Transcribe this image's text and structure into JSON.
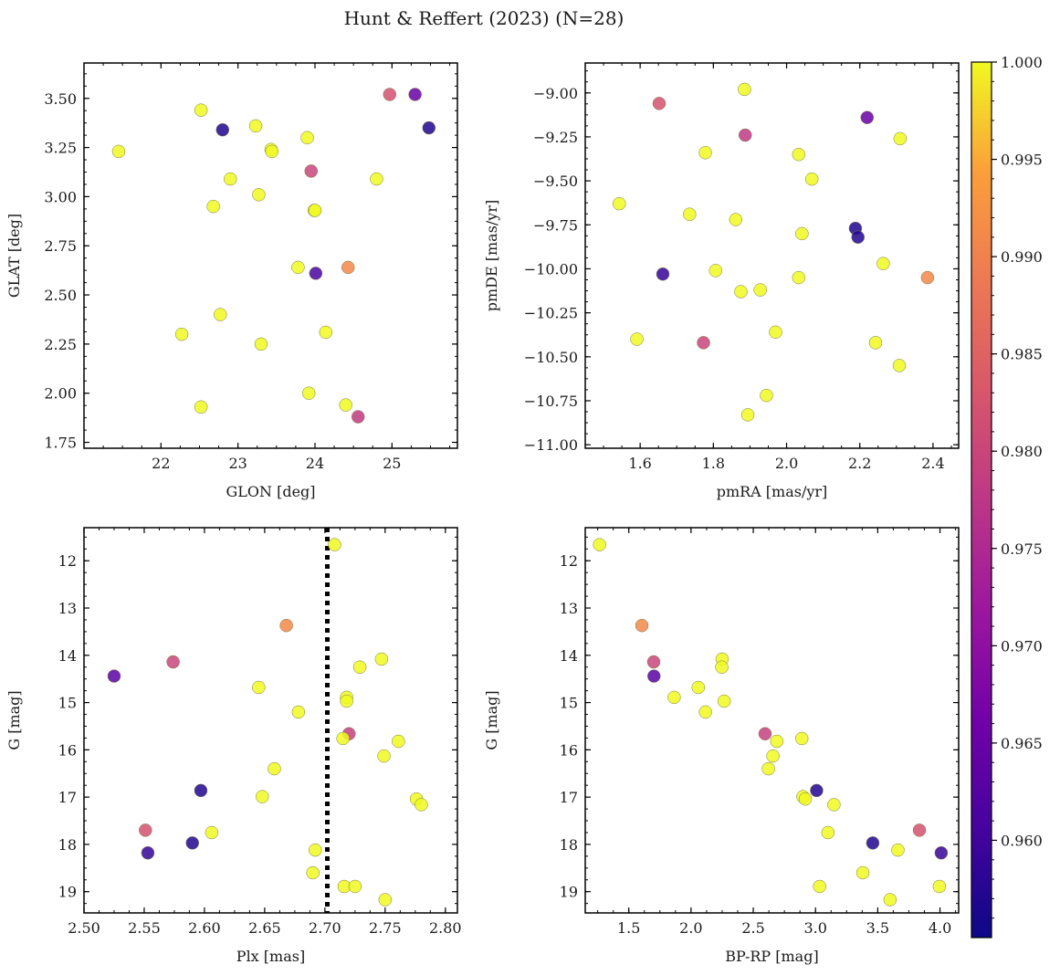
{
  "figure_title": "Hunt & Reffert (2023) (N=28)",
  "colorbar": {
    "min": 0.955,
    "max": 1.0,
    "ticks": [
      0.96,
      0.965,
      0.97,
      0.975,
      0.98,
      0.985,
      0.99,
      0.995,
      1.0
    ],
    "tick_labels": [
      "0.960",
      "0.965",
      "0.970",
      "0.975",
      "0.980",
      "0.985",
      "0.990",
      "0.995",
      "1.000"
    ],
    "colormap": "plasma"
  },
  "chart_data": [
    {
      "type": "scatter",
      "title": "",
      "xlabel": "GLON [deg]",
      "ylabel": "GLAT [deg]",
      "xlim": [
        21.0,
        25.85
      ],
      "ylim": [
        1.72,
        3.68
      ],
      "y_inverted": false,
      "xticks": [
        22,
        23,
        24,
        25
      ],
      "xtick_labels": [
        "22",
        "23",
        "24",
        "25"
      ],
      "yticks": [
        1.75,
        2.0,
        2.25,
        2.5,
        2.75,
        3.0,
        3.25,
        3.5
      ],
      "ytick_labels": [
        "1.75",
        "2.00",
        "2.25",
        "2.50",
        "2.75",
        "3.00",
        "3.25",
        "3.50"
      ],
      "points": [
        {
          "x": 21.45,
          "y": 3.23,
          "c": 1.0
        },
        {
          "x": 22.52,
          "y": 3.44,
          "c": 1.0
        },
        {
          "x": 22.8,
          "y": 3.34,
          "c": 0.957
        },
        {
          "x": 23.23,
          "y": 3.36,
          "c": 1.0
        },
        {
          "x": 23.43,
          "y": 3.24,
          "c": 1.0
        },
        {
          "x": 23.9,
          "y": 3.3,
          "c": 1.0
        },
        {
          "x": 24.97,
          "y": 3.52,
          "c": 0.982
        },
        {
          "x": 25.3,
          "y": 3.52,
          "c": 0.965
        },
        {
          "x": 25.48,
          "y": 3.35,
          "c": 0.957
        },
        {
          "x": 22.9,
          "y": 3.09,
          "c": 1.0
        },
        {
          "x": 23.27,
          "y": 3.01,
          "c": 1.0
        },
        {
          "x": 23.95,
          "y": 3.13,
          "c": 0.98
        },
        {
          "x": 24.8,
          "y": 3.09,
          "c": 1.0
        },
        {
          "x": 22.68,
          "y": 2.95,
          "c": 1.0
        },
        {
          "x": 23.99,
          "y": 2.93,
          "c": 1.0
        },
        {
          "x": 24.43,
          "y": 2.64,
          "c": 0.991
        },
        {
          "x": 23.78,
          "y": 2.64,
          "c": 1.0
        },
        {
          "x": 24.01,
          "y": 2.61,
          "c": 0.961
        },
        {
          "x": 22.77,
          "y": 2.4,
          "c": 1.0
        },
        {
          "x": 22.27,
          "y": 2.3,
          "c": 1.0
        },
        {
          "x": 24.14,
          "y": 2.31,
          "c": 1.0
        },
        {
          "x": 23.3,
          "y": 2.25,
          "c": 1.0
        },
        {
          "x": 23.92,
          "y": 2.0,
          "c": 1.0
        },
        {
          "x": 22.52,
          "y": 1.93,
          "c": 1.0
        },
        {
          "x": 24.4,
          "y": 1.94,
          "c": 1.0
        },
        {
          "x": 24.56,
          "y": 1.88,
          "c": 0.978
        },
        {
          "x": 23.44,
          "y": 3.23,
          "c": 1.0
        },
        {
          "x": 24.0,
          "y": 2.93,
          "c": 1.0
        }
      ]
    },
    {
      "type": "scatter",
      "title": "",
      "xlabel": "pmRA [mas/yr]",
      "ylabel": "pmDE [mas/yr]",
      "xlim": [
        1.45,
        2.47
      ],
      "ylim": [
        -11.02,
        -8.83
      ],
      "y_inverted": false,
      "xticks": [
        1.6,
        1.8,
        2.0,
        2.2,
        2.4
      ],
      "xtick_labels": [
        "1.6",
        "1.8",
        "2.0",
        "2.2",
        "2.4"
      ],
      "yticks": [
        -11.0,
        -10.75,
        -10.5,
        -10.25,
        -10.0,
        -9.75,
        -9.5,
        -9.25,
        -9.0
      ],
      "ytick_labels": [
        "−11.00",
        "−10.75",
        "−10.50",
        "−10.25",
        "−10.00",
        "−9.75",
        "−9.50",
        "−9.25",
        "−9.00"
      ],
      "points": [
        {
          "x": 1.885,
          "y": -8.98,
          "c": 1.0
        },
        {
          "x": 1.652,
          "y": -9.06,
          "c": 0.982
        },
        {
          "x": 2.22,
          "y": -9.14,
          "c": 0.965
        },
        {
          "x": 1.887,
          "y": -9.24,
          "c": 0.978
        },
        {
          "x": 2.31,
          "y": -9.26,
          "c": 1.0
        },
        {
          "x": 1.778,
          "y": -9.34,
          "c": 1.0
        },
        {
          "x": 2.033,
          "y": -9.35,
          "c": 1.0
        },
        {
          "x": 2.069,
          "y": -9.49,
          "c": 1.0
        },
        {
          "x": 1.543,
          "y": -9.63,
          "c": 1.0
        },
        {
          "x": 1.735,
          "y": -9.69,
          "c": 1.0
        },
        {
          "x": 1.861,
          "y": -9.72,
          "c": 1.0
        },
        {
          "x": 2.188,
          "y": -9.77,
          "c": 0.957
        },
        {
          "x": 2.195,
          "y": -9.82,
          "c": 0.957
        },
        {
          "x": 2.042,
          "y": -9.8,
          "c": 1.0
        },
        {
          "x": 1.662,
          "y": -10.03,
          "c": 0.959
        },
        {
          "x": 1.806,
          "y": -10.01,
          "c": 1.0
        },
        {
          "x": 2.264,
          "y": -9.97,
          "c": 1.0
        },
        {
          "x": 2.033,
          "y": -10.05,
          "c": 1.0
        },
        {
          "x": 2.385,
          "y": -10.05,
          "c": 0.991
        },
        {
          "x": 1.875,
          "y": -10.13,
          "c": 1.0
        },
        {
          "x": 1.928,
          "y": -10.12,
          "c": 1.0
        },
        {
          "x": 1.97,
          "y": -10.36,
          "c": 1.0
        },
        {
          "x": 1.591,
          "y": -10.4,
          "c": 1.0
        },
        {
          "x": 1.773,
          "y": -10.42,
          "c": 0.98
        },
        {
          "x": 2.243,
          "y": -10.42,
          "c": 1.0
        },
        {
          "x": 2.308,
          "y": -10.55,
          "c": 1.0
        },
        {
          "x": 1.945,
          "y": -10.72,
          "c": 1.0
        },
        {
          "x": 1.894,
          "y": -10.83,
          "c": 1.0
        }
      ]
    },
    {
      "type": "scatter",
      "title": "",
      "xlabel": "Plx [mas]",
      "ylabel": "G [mag]",
      "xlim": [
        2.5,
        2.81
      ],
      "ylim": [
        11.3,
        19.45
      ],
      "y_inverted": true,
      "xticks": [
        2.5,
        2.55,
        2.6,
        2.65,
        2.7,
        2.75,
        2.8
      ],
      "xtick_labels": [
        "2.50",
        "2.55",
        "2.60",
        "2.65",
        "2.70",
        "2.75",
        "2.80"
      ],
      "yticks": [
        12,
        13,
        14,
        15,
        16,
        17,
        18,
        19
      ],
      "ytick_labels": [
        "12",
        "13",
        "14",
        "15",
        "16",
        "17",
        "18",
        "19"
      ],
      "vline": {
        "x": 2.702,
        "style": "dotted"
      },
      "points": [
        {
          "x": 2.708,
          "y": 11.66,
          "c": 1.0
        },
        {
          "x": 2.668,
          "y": 13.37,
          "c": 0.991
        },
        {
          "x": 2.574,
          "y": 14.14,
          "c": 0.98
        },
        {
          "x": 2.525,
          "y": 14.44,
          "c": 0.963
        },
        {
          "x": 2.747,
          "y": 14.08,
          "c": 1.0
        },
        {
          "x": 2.729,
          "y": 14.25,
          "c": 1.0
        },
        {
          "x": 2.645,
          "y": 14.68,
          "c": 1.0
        },
        {
          "x": 2.718,
          "y": 14.89,
          "c": 1.0
        },
        {
          "x": 2.718,
          "y": 14.97,
          "c": 1.0
        },
        {
          "x": 2.678,
          "y": 15.2,
          "c": 1.0
        },
        {
          "x": 2.72,
          "y": 15.66,
          "c": 0.979
        },
        {
          "x": 2.715,
          "y": 15.76,
          "c": 1.0
        },
        {
          "x": 2.761,
          "y": 15.82,
          "c": 1.0
        },
        {
          "x": 2.749,
          "y": 16.13,
          "c": 1.0
        },
        {
          "x": 2.658,
          "y": 16.4,
          "c": 1.0
        },
        {
          "x": 2.597,
          "y": 16.86,
          "c": 0.957
        },
        {
          "x": 2.648,
          "y": 16.99,
          "c": 1.0
        },
        {
          "x": 2.776,
          "y": 17.04,
          "c": 1.0
        },
        {
          "x": 2.78,
          "y": 17.16,
          "c": 1.0
        },
        {
          "x": 2.551,
          "y": 17.7,
          "c": 0.982
        },
        {
          "x": 2.606,
          "y": 17.75,
          "c": 1.0
        },
        {
          "x": 2.59,
          "y": 17.97,
          "c": 0.957
        },
        {
          "x": 2.553,
          "y": 18.18,
          "c": 0.959
        },
        {
          "x": 2.692,
          "y": 18.12,
          "c": 1.0
        },
        {
          "x": 2.69,
          "y": 18.6,
          "c": 1.0
        },
        {
          "x": 2.716,
          "y": 18.89,
          "c": 1.0
        },
        {
          "x": 2.725,
          "y": 18.89,
          "c": 1.0
        },
        {
          "x": 2.75,
          "y": 19.17,
          "c": 1.0
        }
      ]
    },
    {
      "type": "scatter",
      "title": "",
      "xlabel": "BP-RP [mag]",
      "ylabel": "G [mag]",
      "xlim": [
        1.15,
        4.15
      ],
      "ylim": [
        11.3,
        19.45
      ],
      "y_inverted": true,
      "xticks": [
        1.5,
        2.0,
        2.5,
        3.0,
        3.5,
        4.0
      ],
      "xtick_labels": [
        "1.5",
        "2.0",
        "2.5",
        "3.0",
        "3.5",
        "4.0"
      ],
      "yticks": [
        12,
        13,
        14,
        15,
        16,
        17,
        18,
        19
      ],
      "ytick_labels": [
        "12",
        "13",
        "14",
        "15",
        "16",
        "17",
        "18",
        "19"
      ],
      "points": [
        {
          "x": 1.265,
          "y": 11.66,
          "c": 1.0
        },
        {
          "x": 1.605,
          "y": 13.37,
          "c": 0.991
        },
        {
          "x": 1.7,
          "y": 14.14,
          "c": 0.98
        },
        {
          "x": 1.702,
          "y": 14.44,
          "c": 0.963
        },
        {
          "x": 2.25,
          "y": 14.08,
          "c": 1.0
        },
        {
          "x": 2.247,
          "y": 14.25,
          "c": 1.0
        },
        {
          "x": 2.058,
          "y": 14.68,
          "c": 1.0
        },
        {
          "x": 1.864,
          "y": 14.89,
          "c": 1.0
        },
        {
          "x": 2.266,
          "y": 14.97,
          "c": 1.0
        },
        {
          "x": 2.116,
          "y": 15.2,
          "c": 1.0
        },
        {
          "x": 2.595,
          "y": 15.66,
          "c": 0.979
        },
        {
          "x": 2.89,
          "y": 15.76,
          "c": 1.0
        },
        {
          "x": 2.689,
          "y": 15.82,
          "c": 1.0
        },
        {
          "x": 2.658,
          "y": 16.13,
          "c": 1.0
        },
        {
          "x": 2.622,
          "y": 16.4,
          "c": 1.0
        },
        {
          "x": 3.009,
          "y": 16.86,
          "c": 0.957
        },
        {
          "x": 2.899,
          "y": 16.99,
          "c": 1.0
        },
        {
          "x": 2.918,
          "y": 17.04,
          "c": 1.0
        },
        {
          "x": 3.148,
          "y": 17.16,
          "c": 1.0
        },
        {
          "x": 3.835,
          "y": 17.7,
          "c": 0.982
        },
        {
          "x": 3.1,
          "y": 17.75,
          "c": 1.0
        },
        {
          "x": 3.46,
          "y": 17.97,
          "c": 0.957
        },
        {
          "x": 4.01,
          "y": 18.18,
          "c": 0.959
        },
        {
          "x": 3.662,
          "y": 18.12,
          "c": 1.0
        },
        {
          "x": 3.38,
          "y": 18.6,
          "c": 1.0
        },
        {
          "x": 3.033,
          "y": 18.89,
          "c": 1.0
        },
        {
          "x": 3.995,
          "y": 18.89,
          "c": 1.0
        },
        {
          "x": 3.599,
          "y": 19.17,
          "c": 1.0
        }
      ]
    }
  ]
}
